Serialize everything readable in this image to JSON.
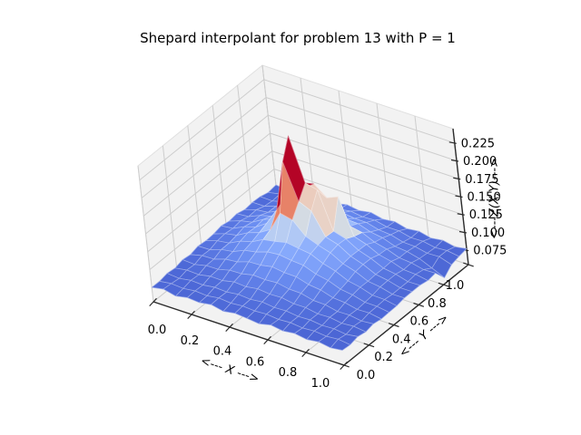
{
  "figure": {
    "title": "Shepard interpolant for problem 13 with P = 1",
    "background_color": "#ffffff"
  },
  "chart_data": {
    "type": "surface",
    "title": "Shepard interpolant for problem 13 with P = 1",
    "xlabel": "<--- X --->",
    "ylabel": "<--- Y --->",
    "zlabel": "<---Z(X,Y)--->",
    "grid_on": true,
    "legend": "none",
    "colormap_name": "coolwarm",
    "view": {
      "elev": 30,
      "azim": -60,
      "projection": "3d"
    },
    "xlim": [
      0.0,
      1.0
    ],
    "ylim": [
      0.0,
      1.0
    ],
    "zlim": [
      0.055,
      0.245
    ],
    "x_ticks": [
      0.0,
      0.2,
      0.4,
      0.6,
      0.8,
      1.0
    ],
    "y_ticks": [
      0.0,
      0.2,
      0.4,
      0.6,
      0.8,
      1.0
    ],
    "z_ticks": [
      0.075,
      0.1,
      0.125,
      0.15,
      0.175,
      0.2,
      0.225
    ],
    "x": [
      0.0,
      0.0625,
      0.125,
      0.1875,
      0.25,
      0.3125,
      0.375,
      0.4375,
      0.5,
      0.5625,
      0.625,
      0.6875,
      0.75,
      0.8125,
      0.875,
      0.9375,
      1.0
    ],
    "y": [
      0.0,
      0.0625,
      0.125,
      0.1875,
      0.25,
      0.3125,
      0.375,
      0.4375,
      0.5,
      0.5625,
      0.625,
      0.6875,
      0.75,
      0.8125,
      0.875,
      0.9375,
      1.0
    ],
    "z": [
      [
        0.0752,
        0.0783,
        0.0741,
        0.0775,
        0.076,
        0.0788,
        0.0749,
        0.0777,
        0.0762,
        0.0741,
        0.078,
        0.0752,
        0.0773,
        0.0744,
        0.0766,
        0.0738,
        0.0759
      ],
      [
        0.0749,
        0.0772,
        0.0759,
        0.0781,
        0.0768,
        0.0792,
        0.0775,
        0.079,
        0.0778,
        0.0787,
        0.0769,
        0.0781,
        0.0761,
        0.0774,
        0.0755,
        0.077,
        0.0748
      ],
      [
        0.0772,
        0.0757,
        0.0784,
        0.0775,
        0.0799,
        0.0788,
        0.0811,
        0.0797,
        0.0815,
        0.0793,
        0.0801,
        0.0779,
        0.0786,
        0.0764,
        0.0772,
        0.0751,
        0.0774
      ],
      [
        0.0758,
        0.0785,
        0.0776,
        0.0809,
        0.0804,
        0.0841,
        0.0829,
        0.0855,
        0.0836,
        0.0844,
        0.0813,
        0.0815,
        0.0783,
        0.0789,
        0.0762,
        0.0775,
        0.0752
      ],
      [
        0.0786,
        0.0776,
        0.0815,
        0.0818,
        0.0861,
        0.0867,
        0.0905,
        0.0894,
        0.0908,
        0.0875,
        0.0871,
        0.0827,
        0.0822,
        0.0784,
        0.0788,
        0.0761,
        0.0776
      ],
      [
        0.0771,
        0.0812,
        0.0818,
        0.0872,
        0.089,
        0.0947,
        0.0955,
        0.0988,
        0.0962,
        0.0958,
        0.0906,
        0.0885,
        0.0831,
        0.0819,
        0.078,
        0.0786,
        0.0757
      ],
      [
        0.0802,
        0.0807,
        0.0864,
        0.0891,
        0.0964,
        0.0995,
        0.1052,
        0.1069,
        0.1044,
        0.1031,
        0.0965,
        0.093,
        0.0862,
        0.0839,
        0.0791,
        0.079,
        0.0762
      ],
      [
        0.0789,
        0.0843,
        0.0867,
        0.0949,
        0.0995,
        0.1081,
        0.1111,
        0.1151,
        0.1124,
        0.1102,
        0.1024,
        0.0973,
        0.0892,
        0.0858,
        0.0802,
        0.0796,
        0.0765
      ],
      [
        0.0796,
        0.0855,
        0.0887,
        0.0979,
        0.1036,
        0.1133,
        0.142,
        0.138,
        0.1206,
        0.1137,
        0.1087,
        0.0989,
        0.0934,
        0.0854,
        0.0829,
        0.0783,
        0.0787
      ],
      [
        0.0821,
        0.0841,
        0.0919,
        0.0971,
        0.1078,
        0.132,
        0.205,
        0.155,
        0.147,
        0.1165,
        0.1112,
        0.1005,
        0.0946,
        0.0862,
        0.0833,
        0.0785,
        0.0788
      ],
      [
        0.0798,
        0.0859,
        0.0894,
        0.0989,
        0.105,
        0.138,
        0.232,
        0.172,
        0.168,
        0.1157,
        0.1105,
        0.1,
        0.0942,
        0.086,
        0.0832,
        0.0784,
        0.0788
      ],
      [
        0.0815,
        0.083,
        0.0901,
        0.0947,
        0.1042,
        0.1093,
        0.15,
        0.162,
        0.148,
        0.155,
        0.1052,
        0.0995,
        0.0907,
        0.0867,
        0.0807,
        0.0799,
        0.0766
      ],
      [
        0.0785,
        0.0836,
        0.0856,
        0.0933,
        0.0972,
        0.1053,
        0.1096,
        0.134,
        0.127,
        0.1051,
        0.1017,
        0.0937,
        0.0897,
        0.0832,
        0.0815,
        0.0776,
        0.0783
      ],
      [
        0.0799,
        0.08,
        0.0852,
        0.0873,
        0.094,
        0.0965,
        0.1017,
        0.1032,
        0.1007,
        0.0998,
        0.0939,
        0.091,
        0.0848,
        0.083,
        0.0786,
        0.071,
        0.063
      ],
      [
        0.079,
        0.0785,
        0.0827,
        0.0836,
        0.0888,
        0.0899,
        0.094,
        0.0951,
        0.0929,
        0.0928,
        0.0881,
        0.0866,
        0.0818,
        0.0811,
        0.0775,
        0.0782,
        0.0725
      ],
      [
        0.0761,
        0.0793,
        0.0785,
        0.0825,
        0.0824,
        0.0865,
        0.0858,
        0.0887,
        0.0862,
        0.0872,
        0.0832,
        0.0833,
        0.0792,
        0.0798,
        0.0765,
        0.0779,
        0.0753
      ],
      [
        0.0778,
        0.0754,
        0.0792,
        0.0771,
        0.0814,
        0.0794,
        0.0835,
        0.0807,
        0.0837,
        0.0798,
        0.0819,
        0.0775,
        0.0796,
        0.0755,
        0.078,
        0.0744,
        0.0773
      ]
    ],
    "colors": {
      "pane": "#f2f2f2",
      "pane_edge": "#e0e0e0",
      "grid": "#cdcdcd",
      "axis_line": "#2b2b2b",
      "tick_label": "#000000",
      "colormap_anchors": [
        {
          "t": 0.0,
          "color": "#3B4CC0"
        },
        {
          "t": 0.1,
          "color": "#4F6BD9"
        },
        {
          "t": 0.2,
          "color": "#688AEF"
        },
        {
          "t": 0.3,
          "color": "#84A7FC"
        },
        {
          "t": 0.4,
          "color": "#A2C0FB"
        },
        {
          "t": 0.5,
          "color": "#C3D3EE"
        },
        {
          "t": 0.55,
          "color": "#D6DCE2"
        },
        {
          "t": 0.6,
          "color": "#E6D7CF"
        },
        {
          "t": 0.7,
          "color": "#F2BFA7"
        },
        {
          "t": 0.8,
          "color": "#EE9A7C"
        },
        {
          "t": 0.9,
          "color": "#DC5F4A"
        },
        {
          "t": 1.0,
          "color": "#B40426"
        }
      ]
    }
  }
}
